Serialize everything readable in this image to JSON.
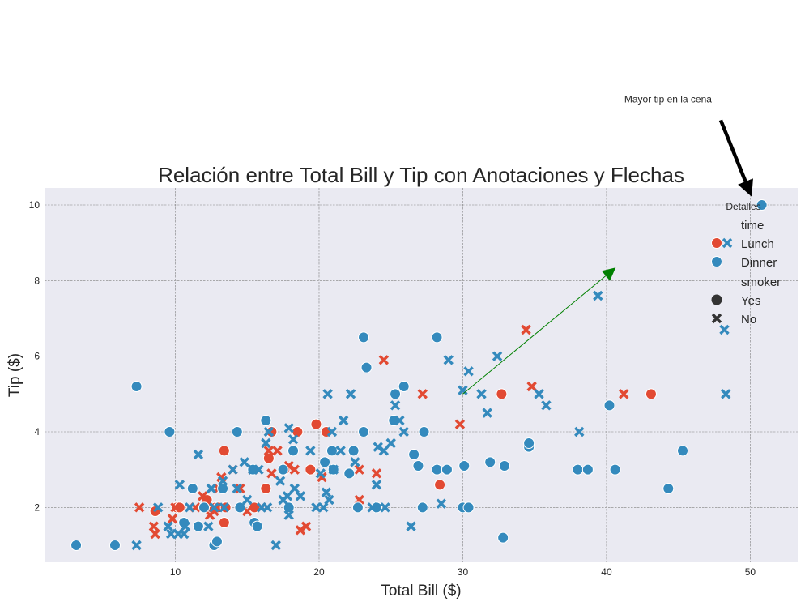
{
  "chart_data": {
    "type": "scatter",
    "title": "Relación entre Total Bill y Tip con Anotaciones y Flechas",
    "xlabel": "Total Bill ($)",
    "ylabel": "Tip ($)",
    "xlim": [
      0.9,
      53.3
    ],
    "ylim": [
      0.55,
      10.45
    ],
    "xticks": [
      10,
      20,
      30,
      40,
      50
    ],
    "yticks": [
      2,
      4,
      6,
      8,
      10
    ],
    "grid": true,
    "legend": {
      "title": "Detalles",
      "placement": "top-right",
      "hue_title": "time",
      "style_title": "smoker",
      "hue_entries": [
        {
          "label": "Lunch",
          "color": "#E24A33"
        },
        {
          "label": "Dinner",
          "color": "#348ABD"
        }
      ],
      "style_entries": [
        {
          "label": "Yes",
          "marker": "circle"
        },
        {
          "label": "No",
          "marker": "x"
        }
      ]
    },
    "annotations": [
      {
        "text": "Mayor tip en la cena",
        "xy": [
          50.8,
          10.0
        ],
        "xytext": [
          48.0,
          12.8
        ],
        "arrow_color": "#000000"
      },
      {
        "text": "",
        "xy": [
          40.5,
          8.3
        ],
        "xytext": [
          30.0,
          5.0
        ],
        "arrow_color": "#008000"
      }
    ],
    "series": [
      {
        "time": "Lunch",
        "smoker": "Yes",
        "points": [
          [
            8.6,
            1.9
          ],
          [
            10.1,
            2.0
          ],
          [
            10.3,
            2.0
          ],
          [
            12.2,
            2.2
          ],
          [
            12.8,
            2.0
          ],
          [
            13.0,
            2.0
          ],
          [
            13.4,
            3.5
          ],
          [
            13.4,
            1.6
          ],
          [
            13.5,
            2.0
          ],
          [
            15.5,
            2.0
          ],
          [
            16.3,
            2.5
          ],
          [
            16.5,
            3.3
          ],
          [
            16.7,
            4.0
          ],
          [
            17.6,
            3.0
          ],
          [
            18.5,
            4.0
          ],
          [
            19.4,
            3.0
          ],
          [
            19.8,
            4.2
          ],
          [
            20.5,
            4.0
          ],
          [
            28.4,
            2.6
          ],
          [
            32.7,
            5.0
          ],
          [
            43.1,
            5.0
          ]
        ]
      },
      {
        "time": "Lunch",
        "smoker": "No",
        "points": [
          [
            7.5,
            2.0
          ],
          [
            8.5,
            1.5
          ],
          [
            8.6,
            1.3
          ],
          [
            9.8,
            1.7
          ],
          [
            10.0,
            2.0
          ],
          [
            11.4,
            2.0
          ],
          [
            11.9,
            2.3
          ],
          [
            12.2,
            2.0
          ],
          [
            12.4,
            1.8
          ],
          [
            12.7,
            1.9
          ],
          [
            13.0,
            2.5
          ],
          [
            13.2,
            2.8
          ],
          [
            14.0,
            3.0
          ],
          [
            14.5,
            2.5
          ],
          [
            15.0,
            1.9
          ],
          [
            15.4,
            3.0
          ],
          [
            16.0,
            2.0
          ],
          [
            16.5,
            3.5
          ],
          [
            16.7,
            2.9
          ],
          [
            17.1,
            3.5
          ],
          [
            17.9,
            3.1
          ],
          [
            18.3,
            3.0
          ],
          [
            18.7,
            1.4
          ],
          [
            19.1,
            1.5
          ],
          [
            20.2,
            2.8
          ],
          [
            22.8,
            2.2
          ],
          [
            22.8,
            3.0
          ],
          [
            24.0,
            2.9
          ],
          [
            24.5,
            5.9
          ],
          [
            27.2,
            5.0
          ],
          [
            29.8,
            4.2
          ],
          [
            34.4,
            6.7
          ],
          [
            34.8,
            5.2
          ],
          [
            41.2,
            5.0
          ]
        ]
      },
      {
        "time": "Dinner",
        "smoker": "Yes",
        "points": [
          [
            3.1,
            1.0
          ],
          [
            5.8,
            1.0
          ],
          [
            7.3,
            5.2
          ],
          [
            9.6,
            4.0
          ],
          [
            10.6,
            1.6
          ],
          [
            11.2,
            2.5
          ],
          [
            11.6,
            1.5
          ],
          [
            12.0,
            2.0
          ],
          [
            12.7,
            1.0
          ],
          [
            12.9,
            1.1
          ],
          [
            13.3,
            2.5
          ],
          [
            14.3,
            4.0
          ],
          [
            14.5,
            2.0
          ],
          [
            15.4,
            3.0
          ],
          [
            15.5,
            1.6
          ],
          [
            15.7,
            1.5
          ],
          [
            16.3,
            4.3
          ],
          [
            17.5,
            3.0
          ],
          [
            17.9,
            2.0
          ],
          [
            18.2,
            3.5
          ],
          [
            20.4,
            3.2
          ],
          [
            20.9,
            3.5
          ],
          [
            21.0,
            3.0
          ],
          [
            22.1,
            2.9
          ],
          [
            22.4,
            3.5
          ],
          [
            22.7,
            2.0
          ],
          [
            23.1,
            4.0
          ],
          [
            23.1,
            6.5
          ],
          [
            23.3,
            5.7
          ],
          [
            24.0,
            2.0
          ],
          [
            25.2,
            4.3
          ],
          [
            25.3,
            5.0
          ],
          [
            25.9,
            5.2
          ],
          [
            26.6,
            3.4
          ],
          [
            26.9,
            3.1
          ],
          [
            27.2,
            2.0
          ],
          [
            27.3,
            4.0
          ],
          [
            28.2,
            3.0
          ],
          [
            28.2,
            6.5
          ],
          [
            28.9,
            3.0
          ],
          [
            30.0,
            2.0
          ],
          [
            30.1,
            3.1
          ],
          [
            30.4,
            2.0
          ],
          [
            31.9,
            3.2
          ],
          [
            32.8,
            1.2
          ],
          [
            32.9,
            3.1
          ],
          [
            34.6,
            3.6
          ],
          [
            34.6,
            3.7
          ],
          [
            38.0,
            3.0
          ],
          [
            38.7,
            3.0
          ],
          [
            40.2,
            4.7
          ],
          [
            40.6,
            3.0
          ],
          [
            44.3,
            2.5
          ],
          [
            45.3,
            3.5
          ],
          [
            50.8,
            10.0
          ]
        ]
      },
      {
        "time": "Dinner",
        "smoker": "No",
        "points": [
          [
            7.3,
            1.0
          ],
          [
            8.8,
            2.0
          ],
          [
            9.5,
            1.5
          ],
          [
            9.7,
            1.3
          ],
          [
            10.2,
            1.3
          ],
          [
            10.3,
            2.6
          ],
          [
            10.6,
            1.3
          ],
          [
            10.7,
            1.5
          ],
          [
            11.0,
            2.0
          ],
          [
            11.6,
            3.4
          ],
          [
            12.3,
            1.5
          ],
          [
            12.5,
            2.5
          ],
          [
            12.7,
            2.0
          ],
          [
            13.3,
            2.7
          ],
          [
            13.4,
            2.0
          ],
          [
            14.0,
            3.0
          ],
          [
            14.3,
            2.5
          ],
          [
            14.8,
            3.2
          ],
          [
            15.0,
            2.2
          ],
          [
            15.4,
            3.0
          ],
          [
            15.8,
            3.0
          ],
          [
            16.0,
            2.0
          ],
          [
            16.3,
            3.7
          ],
          [
            16.4,
            2.0
          ],
          [
            16.5,
            4.0
          ],
          [
            17.0,
            1.0
          ],
          [
            17.3,
            2.7
          ],
          [
            17.5,
            2.2
          ],
          [
            17.8,
            2.3
          ],
          [
            17.9,
            1.8
          ],
          [
            17.9,
            4.1
          ],
          [
            18.2,
            3.8
          ],
          [
            18.3,
            2.5
          ],
          [
            18.7,
            2.3
          ],
          [
            19.4,
            3.5
          ],
          [
            19.8,
            2.0
          ],
          [
            20.1,
            2.9
          ],
          [
            20.3,
            2.0
          ],
          [
            20.5,
            2.4
          ],
          [
            20.6,
            5.0
          ],
          [
            20.7,
            2.2
          ],
          [
            20.9,
            4.0
          ],
          [
            21.0,
            3.0
          ],
          [
            21.5,
            3.5
          ],
          [
            21.7,
            4.3
          ],
          [
            22.2,
            5.0
          ],
          [
            22.5,
            3.2
          ],
          [
            23.7,
            2.0
          ],
          [
            24.0,
            2.6
          ],
          [
            24.1,
            3.6
          ],
          [
            24.5,
            3.5
          ],
          [
            24.6,
            2.0
          ],
          [
            25.0,
            3.7
          ],
          [
            25.3,
            4.7
          ],
          [
            25.6,
            4.3
          ],
          [
            25.9,
            4.0
          ],
          [
            26.4,
            1.5
          ],
          [
            28.5,
            2.1
          ],
          [
            29.0,
            5.9
          ],
          [
            30.0,
            5.1
          ],
          [
            30.4,
            5.6
          ],
          [
            31.3,
            5.0
          ],
          [
            31.7,
            4.5
          ],
          [
            32.4,
            6.0
          ],
          [
            35.3,
            5.0
          ],
          [
            35.8,
            4.7
          ],
          [
            38.1,
            4.0
          ],
          [
            39.4,
            7.6
          ],
          [
            48.2,
            6.7
          ],
          [
            48.3,
            5.0
          ]
        ]
      }
    ]
  }
}
